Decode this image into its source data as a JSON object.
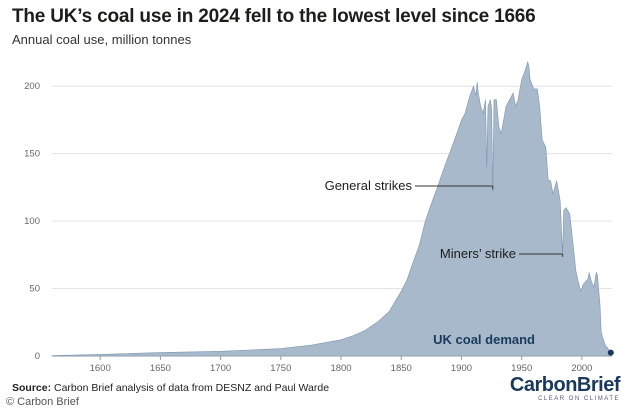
{
  "header": {
    "title": "The UK’s coal use in 2024 fell to the lowest level since 1666",
    "subtitle": "Annual coal use, million tonnes"
  },
  "footer": {
    "source_label": "Source:",
    "source_text": " Carbon Brief analysis of data from DESNZ and Paul Warde",
    "brand": "CarbonBrief",
    "brand_tagline": "CLEAR ON CLIMATE",
    "watermark": "© Carbon Brief"
  },
  "colors": {
    "area": "#a7b9cb",
    "edge": "#7f96ad",
    "dot": "#1a3a5c",
    "grid": "#e3e3e3"
  },
  "chart_data": {
    "type": "area",
    "title": "The UK’s coal use in 2024 fell to the lowest level since 1666",
    "ylabel": "Annual coal use, million tonnes",
    "xlim": [
      1560,
      2025
    ],
    "ylim": [
      0,
      215
    ],
    "x_ticks": [
      1600,
      1650,
      1700,
      1750,
      1800,
      1850,
      1900,
      1950,
      2000
    ],
    "y_ticks": [
      0,
      50,
      100,
      150,
      200
    ],
    "series": [
      {
        "name": "UK coal demand",
        "points": [
          [
            1560,
            0.2
          ],
          [
            1600,
            1.2
          ],
          [
            1650,
            2.5
          ],
          [
            1700,
            3.5
          ],
          [
            1750,
            5.5
          ],
          [
            1775,
            8
          ],
          [
            1800,
            12
          ],
          [
            1810,
            15
          ],
          [
            1820,
            19
          ],
          [
            1830,
            25
          ],
          [
            1840,
            33
          ],
          [
            1850,
            48
          ],
          [
            1855,
            57
          ],
          [
            1860,
            70
          ],
          [
            1865,
            82
          ],
          [
            1870,
            100
          ],
          [
            1875,
            113
          ],
          [
            1880,
            125
          ],
          [
            1885,
            138
          ],
          [
            1890,
            150
          ],
          [
            1895,
            162
          ],
          [
            1900,
            175
          ],
          [
            1903,
            180
          ],
          [
            1907,
            193
          ],
          [
            1910,
            200
          ],
          [
            1912,
            193
          ],
          [
            1913,
            203
          ],
          [
            1914,
            195
          ],
          [
            1916,
            185
          ],
          [
            1918,
            180
          ],
          [
            1920,
            190
          ],
          [
            1921,
            140
          ],
          [
            1922,
            185
          ],
          [
            1924,
            190
          ],
          [
            1925,
            183
          ],
          [
            1926,
            122
          ],
          [
            1927,
            190
          ],
          [
            1929,
            190
          ],
          [
            1931,
            170
          ],
          [
            1933,
            165
          ],
          [
            1935,
            175
          ],
          [
            1937,
            185
          ],
          [
            1940,
            190
          ],
          [
            1943,
            195
          ],
          [
            1945,
            185
          ],
          [
            1947,
            190
          ],
          [
            1950,
            205
          ],
          [
            1953,
            212
          ],
          [
            1955,
            218
          ],
          [
            1956,
            215
          ],
          [
            1957,
            205
          ],
          [
            1960,
            198
          ],
          [
            1963,
            198
          ],
          [
            1965,
            185
          ],
          [
            1967,
            160
          ],
          [
            1970,
            155
          ],
          [
            1972,
            130
          ],
          [
            1974,
            130
          ],
          [
            1976,
            120
          ],
          [
            1979,
            130
          ],
          [
            1982,
            115
          ],
          [
            1984,
            75
          ],
          [
            1985,
            108
          ],
          [
            1987,
            110
          ],
          [
            1990,
            105
          ],
          [
            1993,
            80
          ],
          [
            1995,
            63
          ],
          [
            1997,
            55
          ],
          [
            1999,
            48
          ],
          [
            2001,
            53
          ],
          [
            2003,
            55
          ],
          [
            2005,
            57
          ],
          [
            2006,
            62
          ],
          [
            2008,
            55
          ],
          [
            2010,
            51
          ],
          [
            2012,
            62
          ],
          [
            2013,
            60
          ],
          [
            2014,
            48
          ],
          [
            2015,
            38
          ],
          [
            2016,
            18
          ],
          [
            2017,
            14
          ],
          [
            2018,
            12
          ],
          [
            2019,
            9
          ],
          [
            2020,
            7
          ],
          [
            2021,
            6.5
          ],
          [
            2022,
            5
          ],
          [
            2023,
            4
          ],
          [
            2024,
            2.5
          ]
        ]
      }
    ],
    "annotations": [
      {
        "text": "General strikes",
        "x": 1926,
        "y": 122
      },
      {
        "text": "Miners’ strike",
        "x": 1984,
        "y": 75
      }
    ],
    "highlight_point": [
      2024,
      2.5
    ],
    "grid": true
  }
}
